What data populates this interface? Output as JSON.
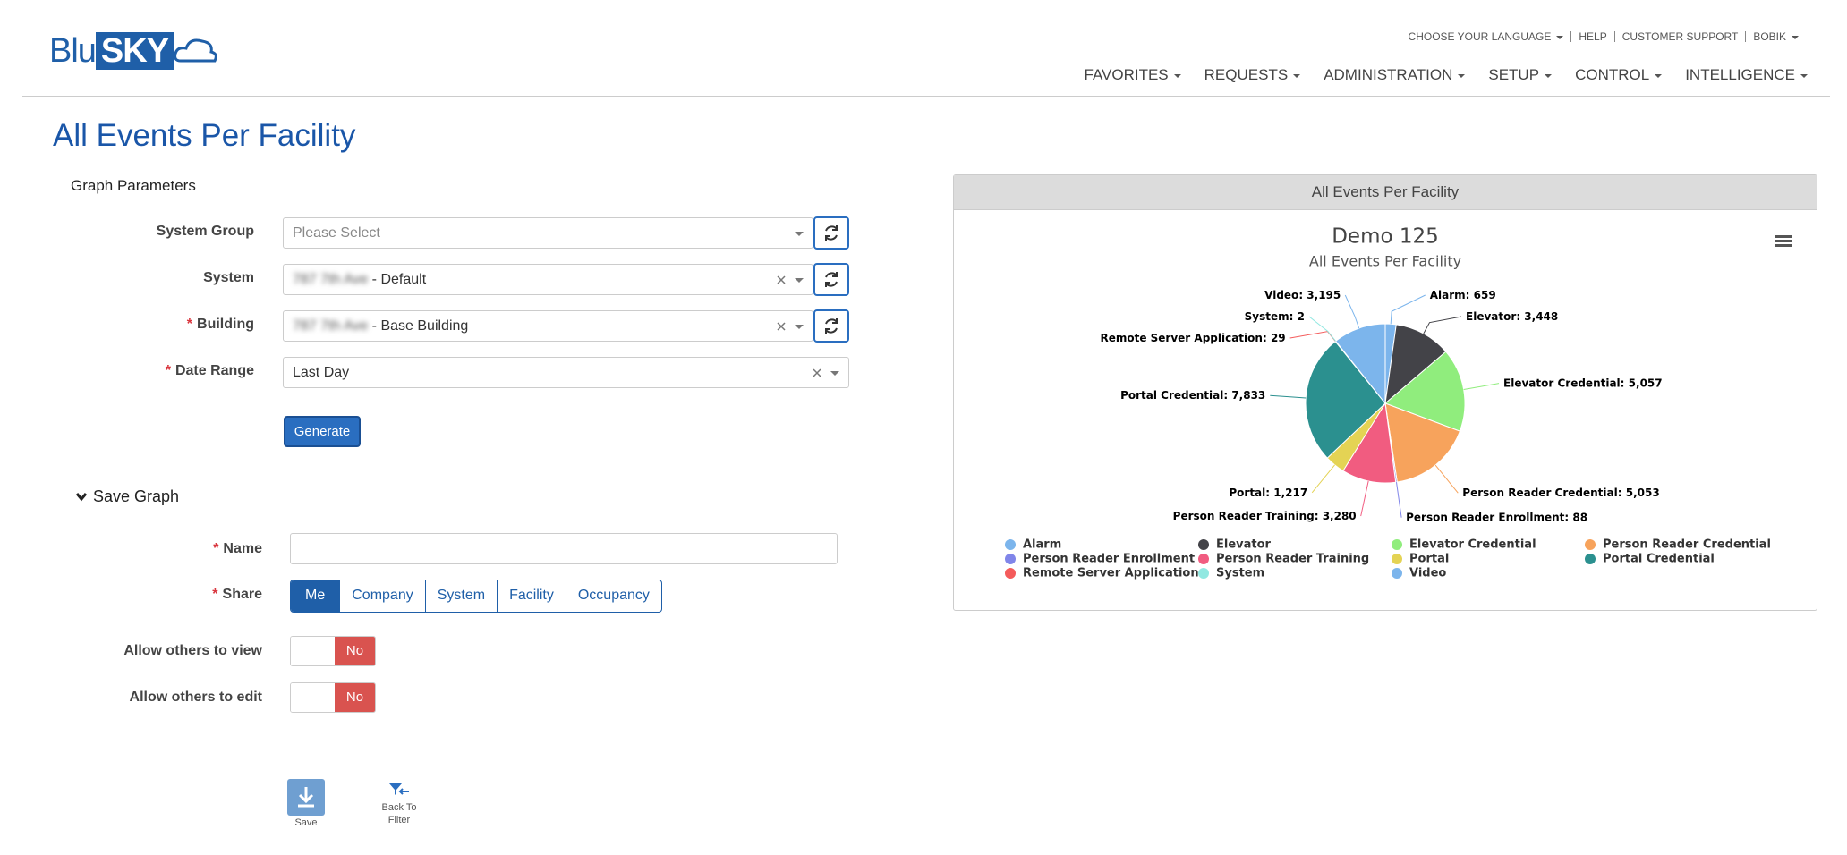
{
  "header": {
    "logo_left": "Blu",
    "logo_right": "SKY",
    "top_links": [
      "CHOOSE YOUR LANGUAGE",
      "HELP",
      "CUSTOMER SUPPORT",
      "BOBIK"
    ],
    "nav": [
      "FAVORITES",
      "REQUESTS",
      "ADMINISTRATION",
      "SETUP",
      "CONTROL",
      "INTELLIGENCE"
    ]
  },
  "page_title": "All Events Per Facility",
  "required_mark": "*",
  "graph_parameters": {
    "title": "Graph Parameters",
    "fields": [
      {
        "label": "System Group",
        "placeholder": "Please Select"
      },
      {
        "label": "System",
        "blurred": "787 7th Ave",
        "value": " - Default"
      },
      {
        "label": "Building",
        "blurred": "787 7th Ave",
        "value": " - Base Building"
      },
      {
        "label": "Date Range",
        "value": "Last Day"
      }
    ],
    "generate": "Generate"
  },
  "save_graph": {
    "title": "Save Graph",
    "name_label": "Name",
    "share_label": "Share",
    "share_options": [
      "Me",
      "Company",
      "System",
      "Facility",
      "Occupancy"
    ],
    "toggles": [
      {
        "label": "Allow others to view",
        "state": "No"
      },
      {
        "label": "Allow others to edit",
        "state": "No"
      }
    ]
  },
  "actions": {
    "save": "Save",
    "back": "Back To Filter"
  },
  "chart_panel": {
    "header": "All Events Per Facility"
  },
  "chart_data": {
    "type": "pie",
    "title": "Demo 125",
    "subtitle": "All Events Per Facility",
    "categories": [
      "Alarm",
      "Elevator",
      "Elevator Credential",
      "Person Reader Credential",
      "Person Reader Enrollment",
      "Person Reader Training",
      "Portal",
      "Portal Credential",
      "Remote Server Application",
      "System",
      "Video"
    ],
    "values": [
      659,
      3448,
      5057,
      5053,
      88,
      3280,
      1217,
      7833,
      29,
      2,
      3195
    ],
    "value_labels": [
      "659",
      "3,448",
      "5,057",
      "5,053",
      "88",
      "3,280",
      "1,217",
      "7,833",
      "29",
      "2",
      "3,195"
    ],
    "colors": [
      "#7cb5ec",
      "#434348",
      "#90ed7d",
      "#f7a35c",
      "#8085e9",
      "#f15c80",
      "#e4d354",
      "#2b908f",
      "#f45b5b",
      "#91e8e1",
      "#7cb5ec"
    ]
  }
}
